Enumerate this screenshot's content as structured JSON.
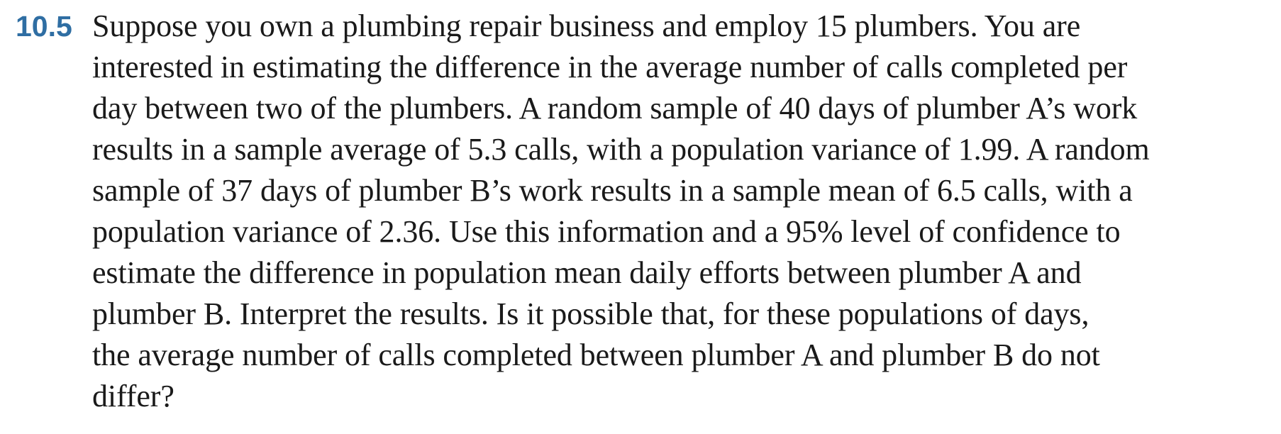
{
  "exercise": {
    "number": "10.5",
    "lines": [
      "Suppose you own a plumbing repair business and employ 15 plumbers. You are",
      "interested in estimating the difference in the average number of calls completed per",
      "day between two of the plumbers. A random sample of 40 days of plumber A’s work",
      "results in a sample average of 5.3 calls, with a population variance of 1.99. A random",
      "sample of 37 days of plumber B’s work results in a sample mean of 6.5 calls, with a",
      "population variance of 2.36. Use this information and a 95% level of confidence to",
      "estimate the difference in population mean daily efforts between plumber A and",
      "plumber B. Interpret the results. Is it possible that, for these populations of days,",
      "the average number of calls completed between plumber A and plumber B do not",
      "differ?"
    ]
  }
}
